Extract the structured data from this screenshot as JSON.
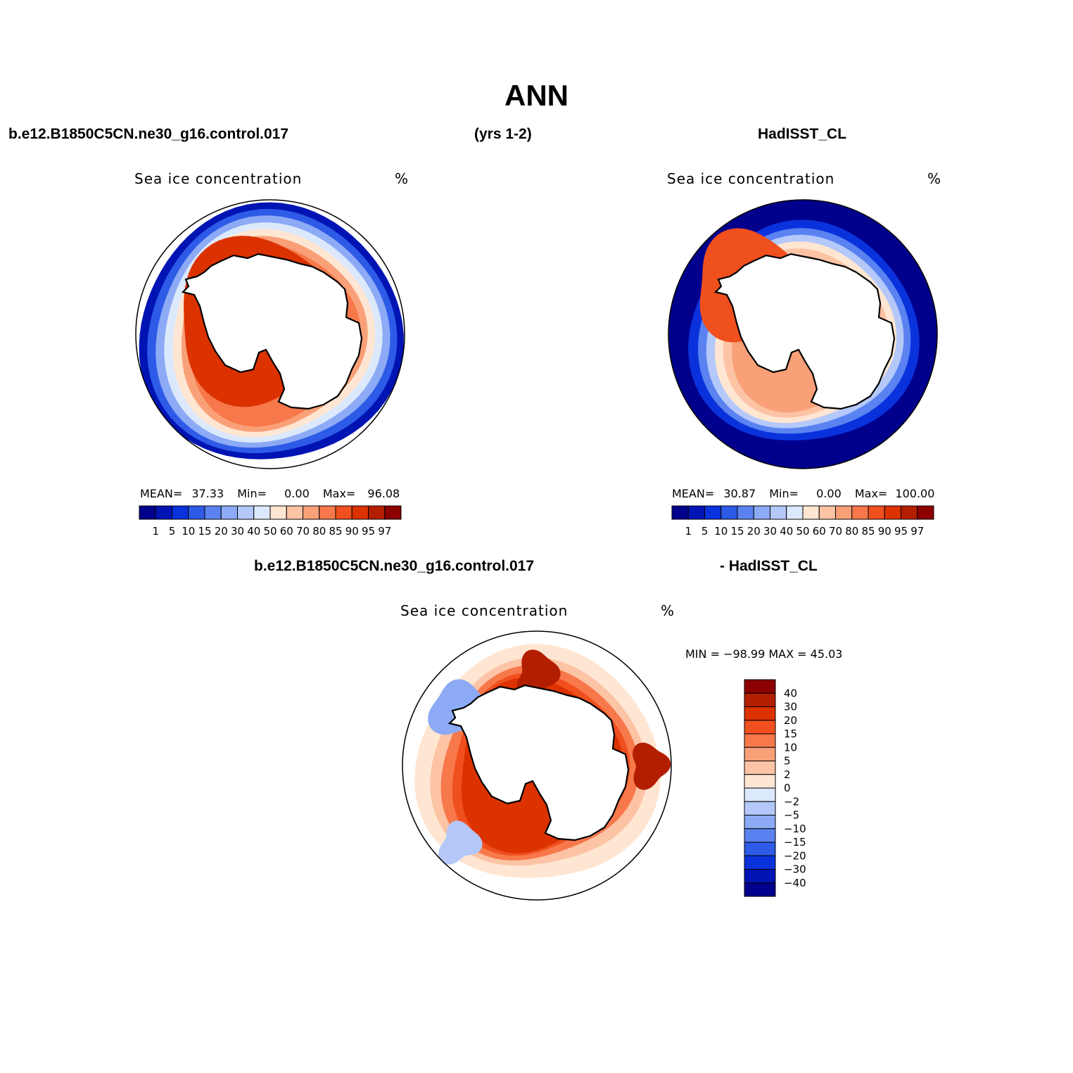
{
  "figure": {
    "title": "ANN",
    "header_left": "b.e12.B1850C5CN.ne30_g16.control.017",
    "header_mid": "(yrs 1-2)",
    "header_right": "HadISST_CL",
    "diff_header_left": "b.e12.B1850C5CN.ne30_g16.control.017",
    "diff_header_right": "- HadISST_CL"
  },
  "panels": [
    {
      "id": "model",
      "title": "Sea ice concentration",
      "units": "%",
      "mean_label": "MEAN=",
      "mean": "37.33",
      "min_label": "Min=",
      "min": "0.00",
      "max_label": "Max=",
      "max": "96.08"
    },
    {
      "id": "obs",
      "title": "Sea ice concentration",
      "units": "%",
      "mean_label": "MEAN=",
      "mean": "30.87",
      "min_label": "Min=",
      "min": "0.00",
      "max_label": "Max=",
      "max": "100.00"
    },
    {
      "id": "diff",
      "title": "Sea ice concentration",
      "units": "%",
      "minmax_text": "MIN = −98.99 MAX =   45.03"
    }
  ],
  "colorbar_abs": {
    "levels": [
      "1",
      "5",
      "10",
      "15",
      "20",
      "30",
      "40",
      "50",
      "60",
      "70",
      "80",
      "85",
      "90",
      "95",
      "97"
    ],
    "colors": [
      "#00008c",
      "#0014b4",
      "#0a32dc",
      "#2d5ae6",
      "#5a82f0",
      "#8caaf5",
      "#b4c8fa",
      "#dce9fc",
      "#ffe6d2",
      "#fcc3a5",
      "#f9a078",
      "#f7784b",
      "#f04f1e",
      "#dc3200",
      "#b41e00",
      "#8c0000"
    ]
  },
  "colorbar_diff": {
    "levels": [
      "40",
      "30",
      "20",
      "15",
      "10",
      "5",
      "2",
      "0",
      "−2",
      "−5",
      "−10",
      "−15",
      "−20",
      "−30",
      "−40"
    ],
    "colors": [
      "#8c0000",
      "#b41e00",
      "#dc3200",
      "#f04f1e",
      "#f7784b",
      "#f9a078",
      "#fcc3a5",
      "#ffe6d2",
      "#dce9fc",
      "#b4c8fa",
      "#8caaf5",
      "#5a82f0",
      "#2d5ae6",
      "#0a32dc",
      "#0014b4",
      "#00008c"
    ]
  }
}
